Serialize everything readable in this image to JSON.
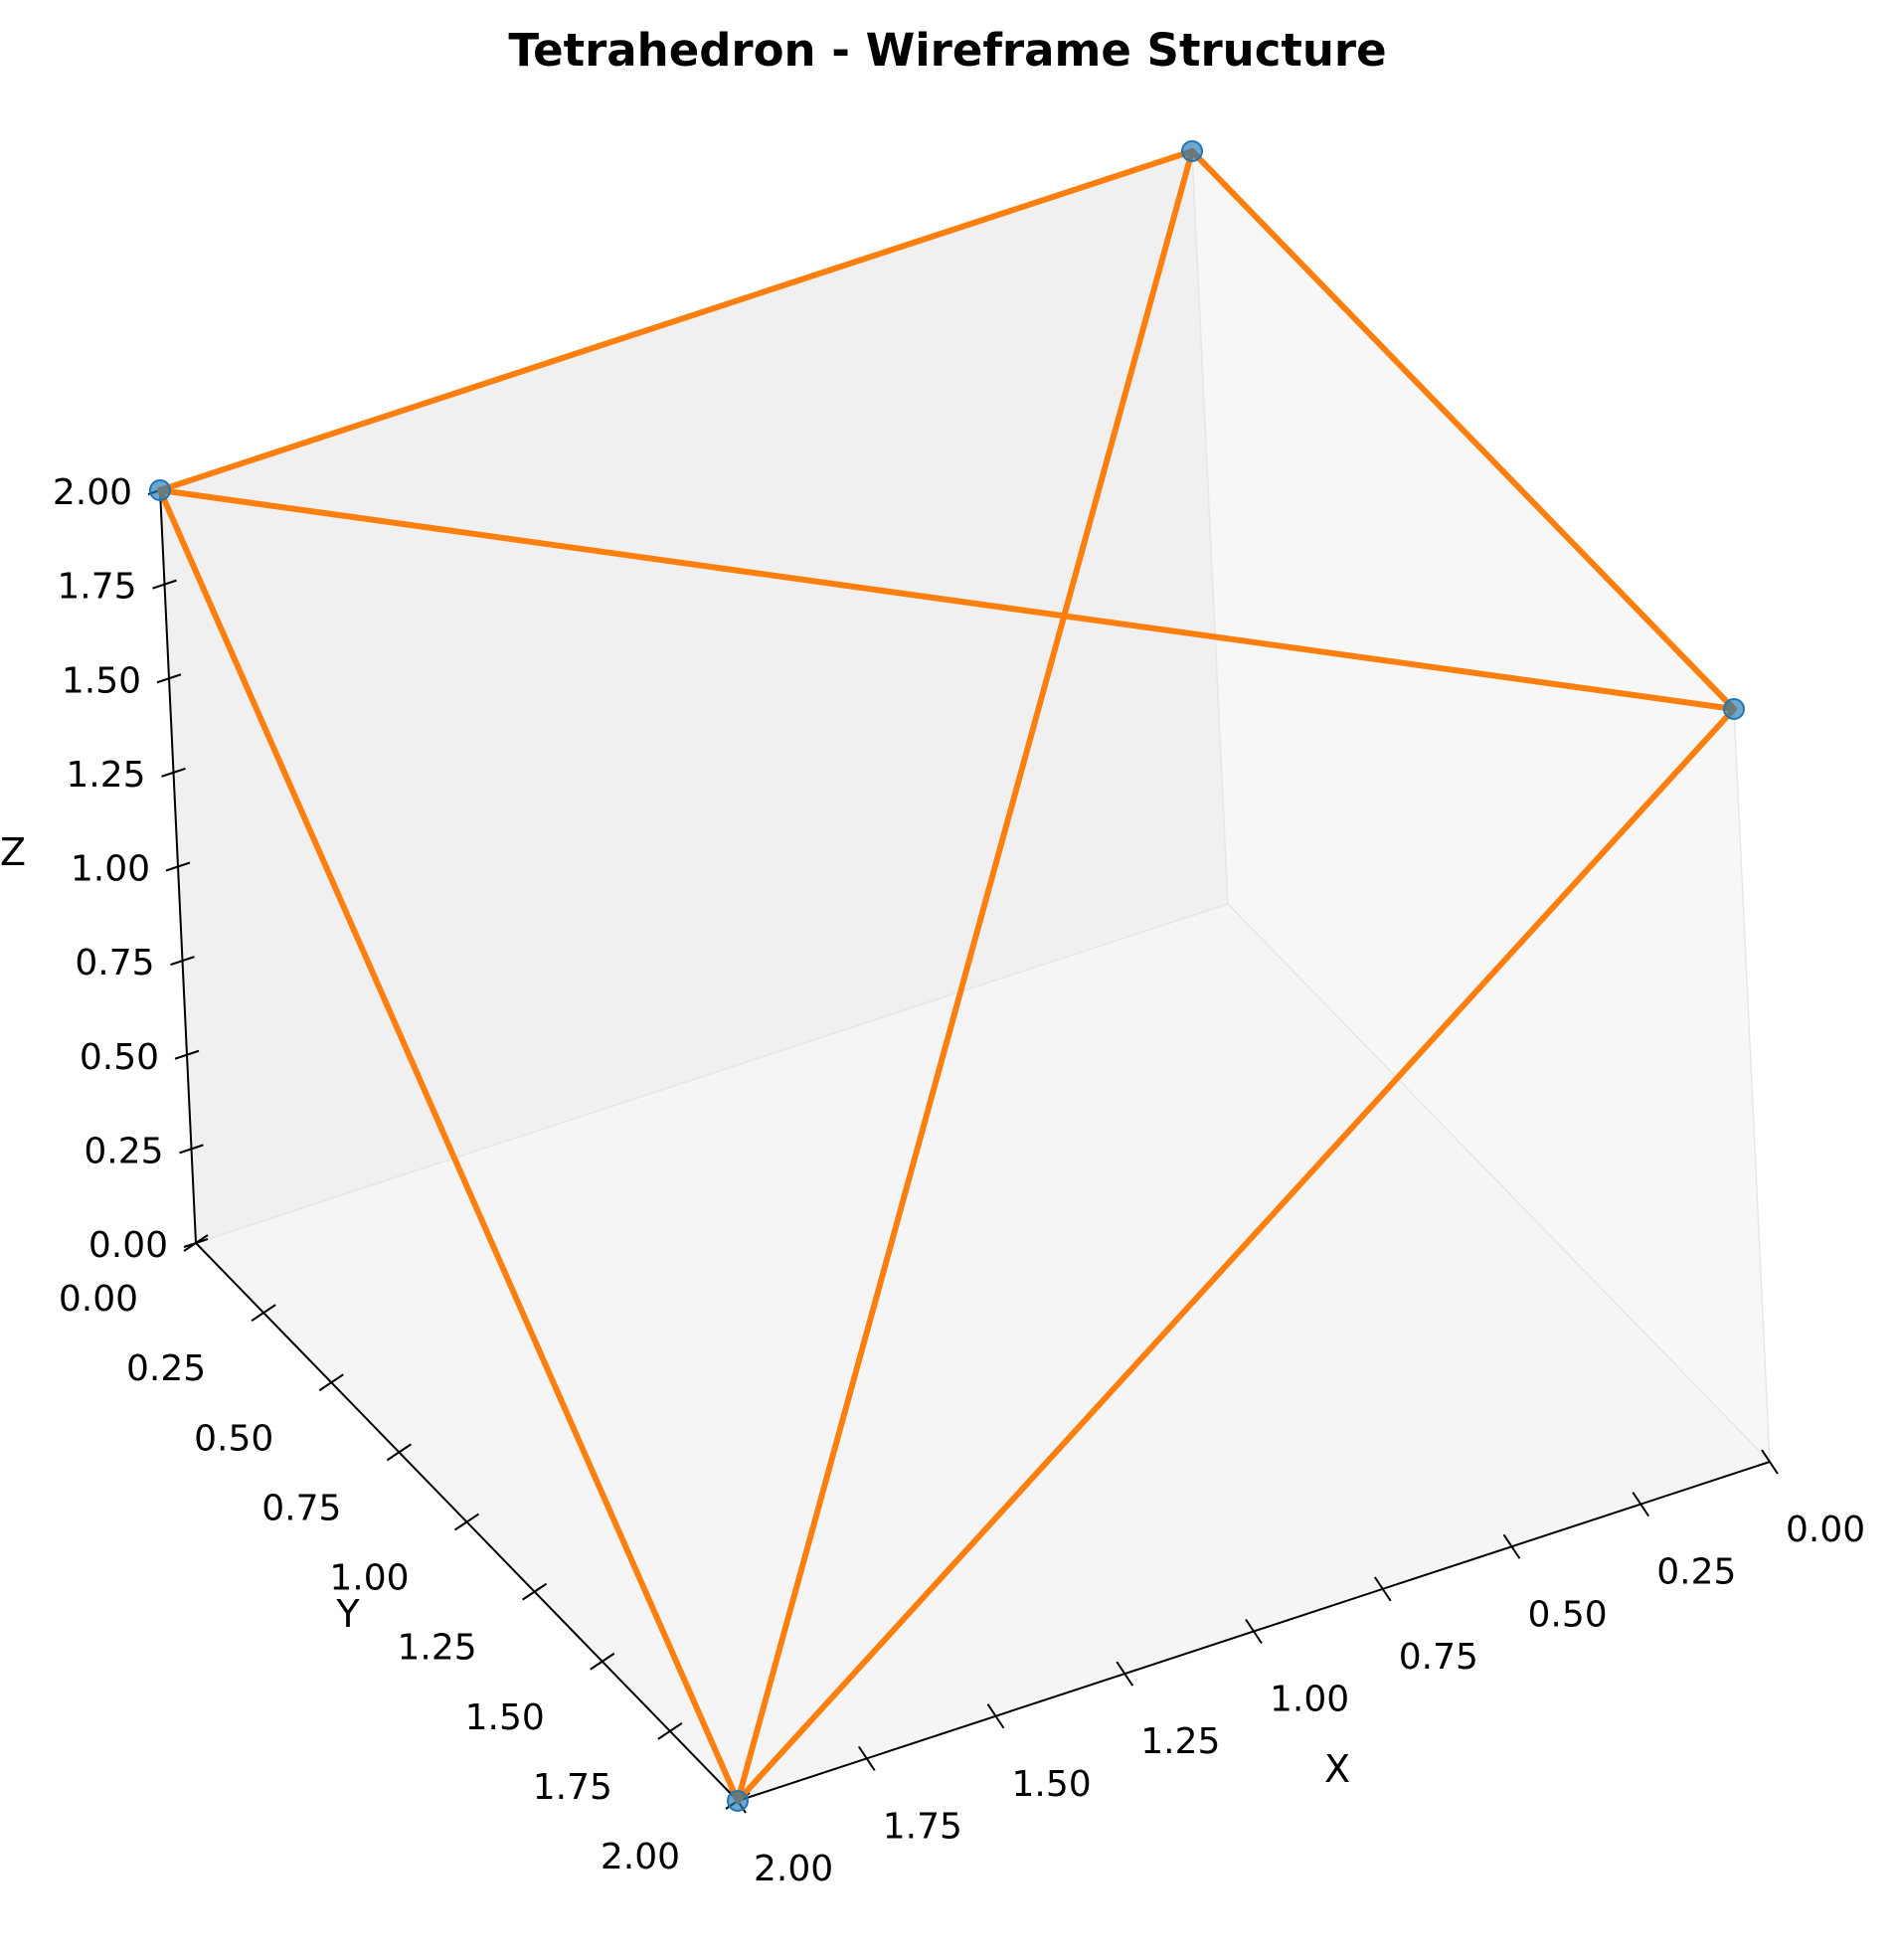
{
  "chart_data": {
    "type": "scatter3d-wireframe",
    "title": "Tetrahedron - Wireframe Structure",
    "xlabel": "X",
    "ylabel": "Y",
    "zlabel": "Z",
    "xlim": [
      0,
      2
    ],
    "ylim": [
      0,
      2
    ],
    "zlim": [
      0,
      2
    ],
    "grid": false,
    "x_ticks": [
      "0.00",
      "0.25",
      "0.50",
      "0.75",
      "1.00",
      "1.25",
      "1.50",
      "1.75",
      "2.00"
    ],
    "y_ticks": [
      "0.00",
      "0.25",
      "0.50",
      "0.75",
      "1.00",
      "1.25",
      "1.50",
      "1.75",
      "2.00"
    ],
    "z_ticks": [
      "0.00",
      "0.25",
      "0.50",
      "0.75",
      "1.00",
      "1.25",
      "1.50",
      "1.75",
      "2.00"
    ],
    "vertices": [
      {
        "x": 2,
        "y": 2,
        "z": 0
      },
      {
        "x": 0,
        "y": 0,
        "z": 2
      },
      {
        "x": 0,
        "y": 2,
        "z": 2
      },
      {
        "x": 2,
        "y": 0,
        "z": 2
      }
    ],
    "edges": [
      [
        0,
        1
      ],
      [
        0,
        2
      ],
      [
        0,
        3
      ],
      [
        1,
        2
      ],
      [
        1,
        3
      ],
      [
        2,
        3
      ]
    ],
    "vertex_color": "#1f77b4",
    "edge_color": "#ff7f0e"
  }
}
